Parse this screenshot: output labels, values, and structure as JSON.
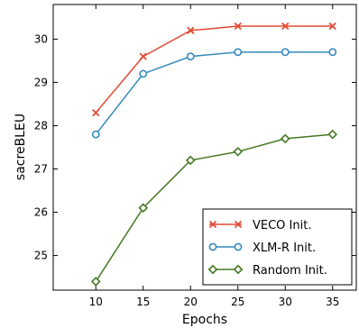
{
  "chart_data": {
    "type": "line",
    "x": [
      10,
      15,
      20,
      25,
      30,
      35
    ],
    "xlabel": "Epochs",
    "ylabel": "sacreBLEU",
    "xlim": [
      5.5,
      37.5
    ],
    "ylim": [
      24.2,
      30.8
    ],
    "xticks": [
      "10",
      "15",
      "20",
      "25",
      "30",
      "35"
    ],
    "yticks": [
      "25",
      "26",
      "27",
      "28",
      "29",
      "30"
    ],
    "grid": false,
    "legend_position": "bottom-right",
    "series": [
      {
        "name": "VECO Init.",
        "color": "#e24a33",
        "marker": "x",
        "values": [
          28.3,
          29.6,
          30.2,
          30.3,
          30.3,
          30.3
        ]
      },
      {
        "name": "XLM-R Init.",
        "color": "#348abd",
        "marker": "circle",
        "values": [
          27.8,
          29.2,
          29.6,
          29.7,
          29.7,
          29.7
        ]
      },
      {
        "name": "Random Init.",
        "color": "#467821",
        "marker": "diamond",
        "values": [
          24.4,
          26.1,
          27.2,
          27.4,
          27.7,
          27.8
        ]
      }
    ]
  }
}
